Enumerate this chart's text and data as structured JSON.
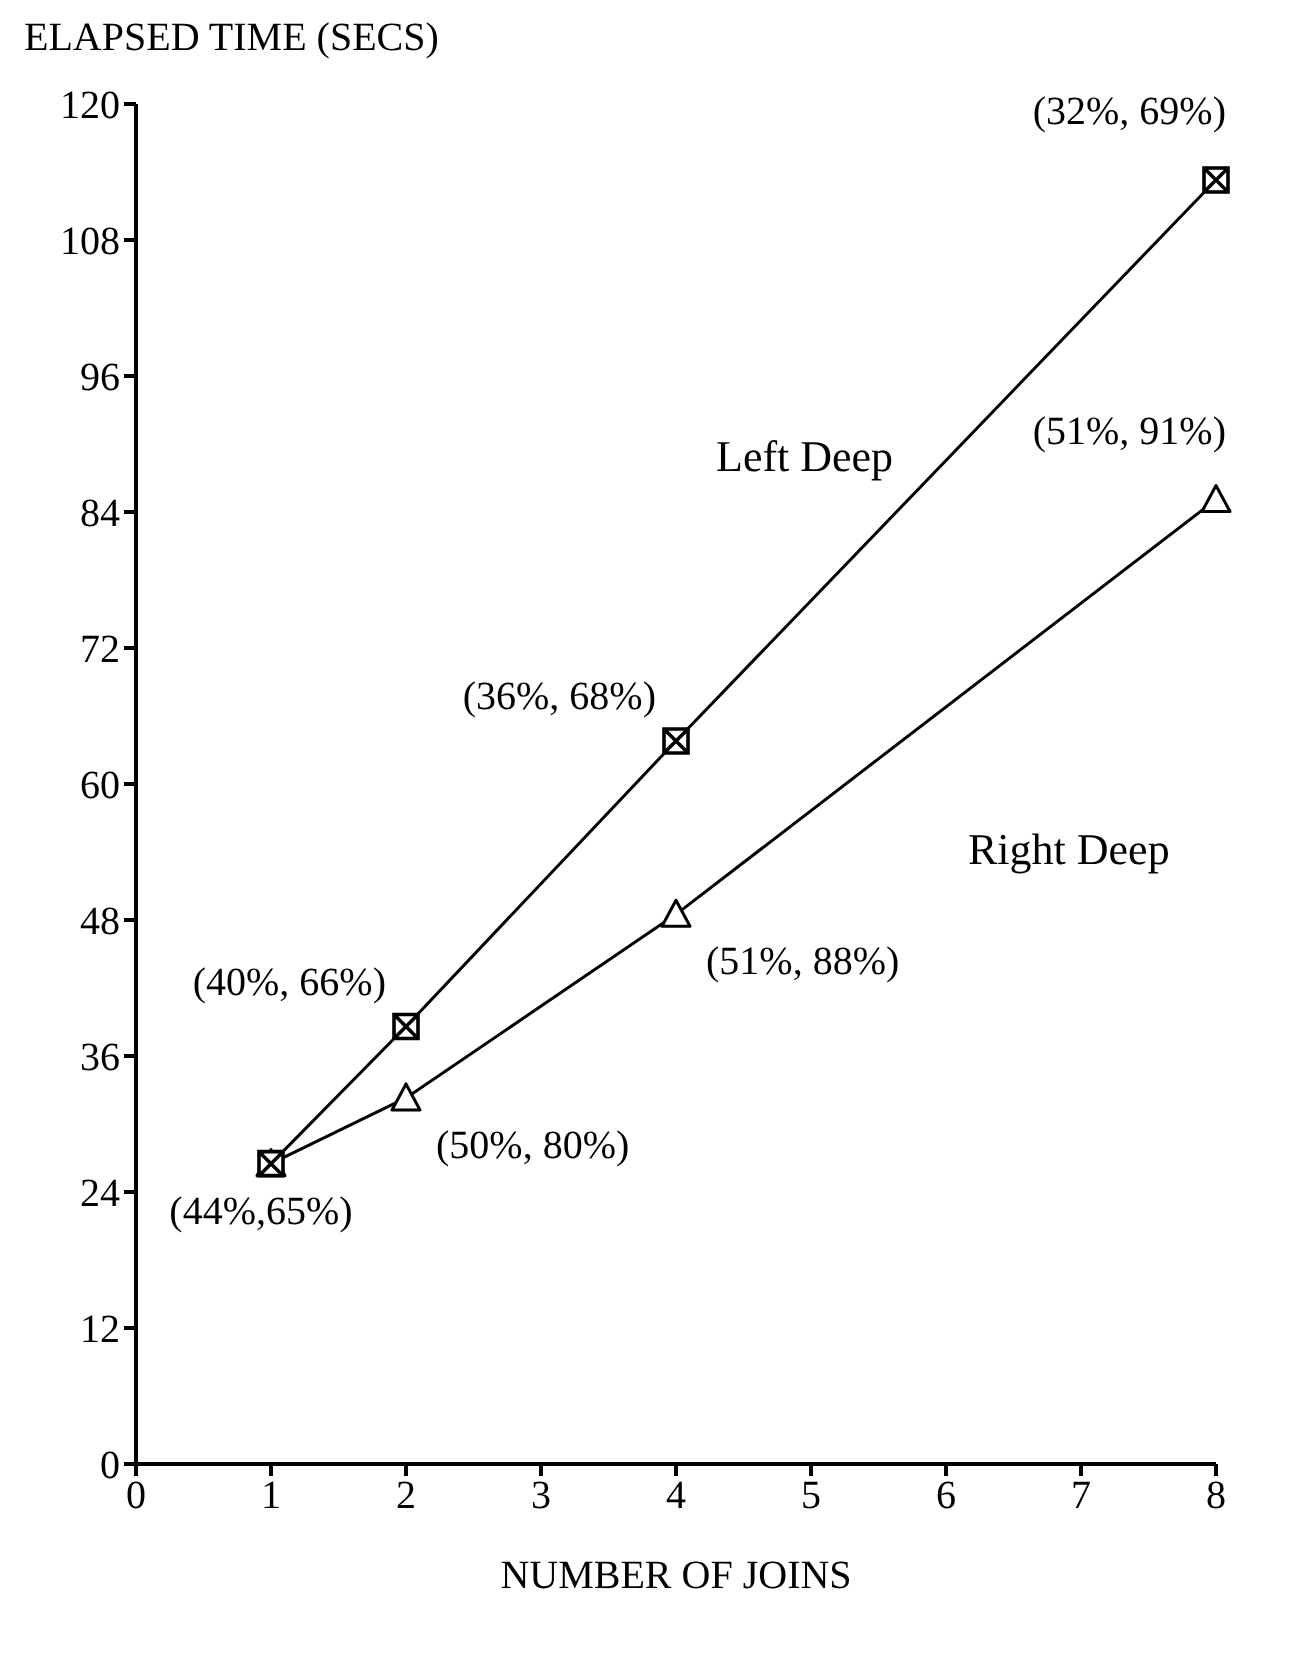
{
  "chart_data": {
    "type": "line",
    "ylabel": "ELAPSED TIME (SECS)",
    "xlabel": "NUMBER OF JOINS",
    "x": [
      1,
      2,
      4,
      8
    ],
    "series": [
      {
        "name": "Left Deep",
        "color": "#000000",
        "marker": "cross",
        "values": [
          26.5,
          38.6,
          63.8,
          113.3
        ]
      },
      {
        "name": "Right Deep",
        "color": "#000000",
        "marker": "triangle",
        "values": [
          26.5,
          32.3,
          48.5,
          85.1
        ]
      }
    ],
    "xlim": [
      0,
      8
    ],
    "xticks": [
      0,
      1,
      2,
      3,
      4,
      5,
      6,
      7,
      8
    ],
    "ylim": [
      0,
      120
    ],
    "yticks": [
      0,
      12,
      24,
      36,
      48,
      60,
      72,
      84,
      96,
      108,
      120
    ],
    "grid": false,
    "legend": false,
    "annotations": [
      {
        "text": "(44%,65%)",
        "x": 1,
        "y": 26.5
      },
      {
        "text": "(40%, 66%)",
        "x": 2,
        "y": 38.6
      },
      {
        "text": "(50%, 80%)",
        "x": 2,
        "y": 32.3
      },
      {
        "text": "(36%, 68%)",
        "x": 4,
        "y": 63.8
      },
      {
        "text": "(51%, 88%)",
        "x": 4,
        "y": 48.5
      },
      {
        "text": "(32%, 69%)",
        "x": 8,
        "y": 113.3
      },
      {
        "text": "(51%, 91%)",
        "x": 8,
        "y": 85.1
      }
    ]
  }
}
